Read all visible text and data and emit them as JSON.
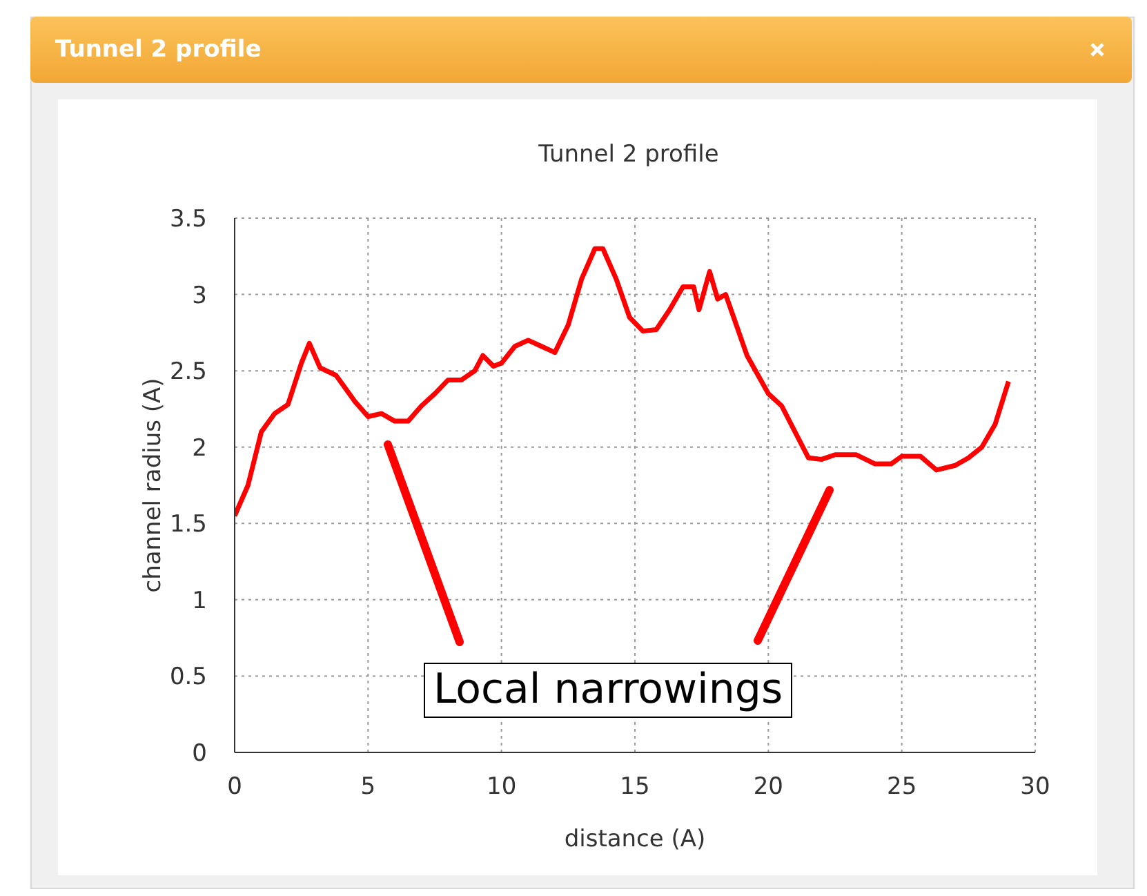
{
  "chart_data": {
    "type": "line",
    "title": "Tunnel 2 profile",
    "xlabel": "distance (A)",
    "ylabel": "channel radius (A)",
    "x": [
      0,
      0.5,
      1,
      1.5,
      2,
      2.5,
      2.8,
      3.2,
      3.8,
      4.5,
      5,
      5.5,
      6,
      6.5,
      7,
      7.5,
      8,
      8.5,
      9,
      9.3,
      9.7,
      10,
      10.5,
      11,
      11.5,
      12,
      12.5,
      13,
      13.5,
      13.8,
      14.3,
      14.8,
      15.3,
      15.8,
      16.3,
      16.8,
      17.2,
      17.4,
      17.8,
      18.1,
      18.4,
      18.7,
      19.2,
      20,
      20.5,
      21,
      21.5,
      22,
      22.5,
      23.3,
      24,
      24.6,
      25,
      25.7,
      26.3,
      27,
      27.5,
      28,
      28.5,
      29
    ],
    "series": [
      {
        "color": "#ff0000",
        "values": [
          1.55,
          1.75,
          2.1,
          2.22,
          2.28,
          2.55,
          2.68,
          2.52,
          2.47,
          2.3,
          2.2,
          2.22,
          2.17,
          2.17,
          2.27,
          2.35,
          2.44,
          2.44,
          2.5,
          2.6,
          2.53,
          2.55,
          2.66,
          2.7,
          2.66,
          2.62,
          2.8,
          3.1,
          3.3,
          3.3,
          3.1,
          2.85,
          2.76,
          2.77,
          2.9,
          3.05,
          3.05,
          2.9,
          3.15,
          2.97,
          3.0,
          2.85,
          2.6,
          2.35,
          2.27,
          2.1,
          1.93,
          1.92,
          1.95,
          1.95,
          1.89,
          1.89,
          1.94,
          1.94,
          1.85,
          1.88,
          1.93,
          2.0,
          2.15,
          2.43
        ]
      }
    ],
    "xlim": [
      0,
      30
    ],
    "xticks": [
      0,
      5,
      10,
      15,
      20,
      25,
      30
    ],
    "ylim": [
      0,
      3.5
    ],
    "yticks": [
      0,
      0.5,
      1,
      1.5,
      2,
      2.5,
      3,
      3.5
    ],
    "grid": true,
    "marker": "none",
    "line_style": "solid",
    "annotations": [
      "Local narrowings"
    ]
  }
}
